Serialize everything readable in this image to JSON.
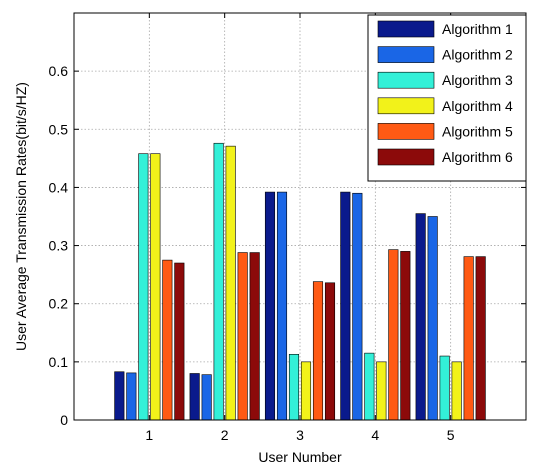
{
  "chart_data": {
    "type": "bar",
    "title": "",
    "xlabel": "User Number",
    "ylabel": "User Average Transmission Rates(bit/s/HZ)",
    "categories": [
      "1",
      "2",
      "3",
      "4",
      "5"
    ],
    "ylim": [
      0,
      0.7
    ],
    "yticks": [
      0,
      0.1,
      0.2,
      0.3,
      0.4,
      0.5,
      0.6
    ],
    "ytick_labels": [
      "0",
      "0.1",
      "0.2",
      "0.3",
      "0.4",
      "0.5",
      "0.6"
    ],
    "grid": true,
    "legend_position": "top-right",
    "series": [
      {
        "name": "Algorithm 1",
        "color": "#0a1a8c",
        "values": [
          0.083,
          0.08,
          0.392,
          0.392,
          0.355
        ]
      },
      {
        "name": "Algorithm 2",
        "color": "#1a66e6",
        "values": [
          0.081,
          0.078,
          0.392,
          0.39,
          0.35
        ]
      },
      {
        "name": "Algorithm 3",
        "color": "#33f0d8",
        "values": [
          0.458,
          0.476,
          0.113,
          0.115,
          0.11
        ]
      },
      {
        "name": "Algorithm 4",
        "color": "#f2f21a",
        "values": [
          0.458,
          0.471,
          0.1,
          0.1,
          0.1
        ]
      },
      {
        "name": "Algorithm 5",
        "color": "#ff5a14",
        "values": [
          0.275,
          0.288,
          0.238,
          0.293,
          0.281
        ]
      },
      {
        "name": "Algorithm 6",
        "color": "#8c0a0a",
        "values": [
          0.27,
          0.288,
          0.236,
          0.29,
          0.281
        ]
      }
    ]
  }
}
